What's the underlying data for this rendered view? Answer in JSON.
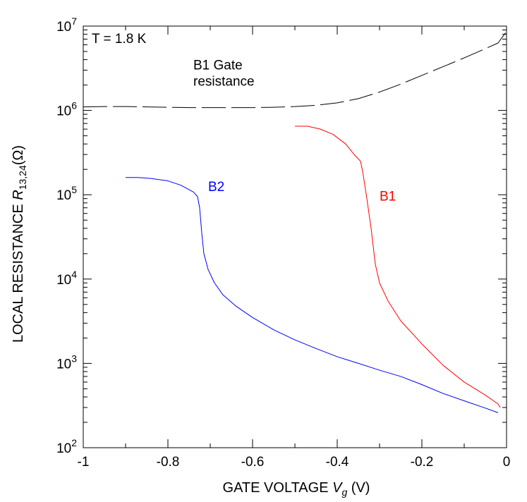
{
  "chart_data": {
    "type": "line",
    "title": "",
    "xlabel_parts": {
      "prefix": "GATE VOLTAGE ",
      "var": "V",
      "sub": "g",
      "suffix": " (V)"
    },
    "ylabel_parts": {
      "prefix": "LOCAL RESISTANCE ",
      "var": "R",
      "sub": "13,24",
      "suffix": "(Ω)"
    },
    "xlim": [
      -1,
      0
    ],
    "ylim": [
      100,
      10000000
    ],
    "yscale": "log",
    "grid": false,
    "x_ticks": [
      {
        "value": -1,
        "label": "-1"
      },
      {
        "value": -0.8,
        "label": "-0.8"
      },
      {
        "value": -0.6,
        "label": "-0.6"
      },
      {
        "value": -0.4,
        "label": "-0.4"
      },
      {
        "value": -0.2,
        "label": "-0.2"
      },
      {
        "value": 0,
        "label": "0"
      }
    ],
    "y_ticks": [
      {
        "value": 100,
        "base": "10",
        "exp": "2"
      },
      {
        "value": 1000,
        "base": "10",
        "exp": "3"
      },
      {
        "value": 10000,
        "base": "10",
        "exp": "4"
      },
      {
        "value": 100000,
        "base": "10",
        "exp": "5"
      },
      {
        "value": 1000000,
        "base": "10",
        "exp": "6"
      },
      {
        "value": 10000000,
        "base": "10",
        "exp": "7"
      }
    ],
    "annotations": [
      {
        "id": "temperature",
        "lines": [
          "T = 1.8 K"
        ],
        "x": -0.98,
        "y": 6300000,
        "color": "#000000"
      },
      {
        "id": "gate-resistance",
        "lines": [
          "B1 Gate",
          "resistance"
        ],
        "x": -0.74,
        "y": 3050000,
        "color": "#000000"
      },
      {
        "id": "b2",
        "lines": [
          "B2"
        ],
        "x": -0.705,
        "y": 110000,
        "color": "#0000ff"
      },
      {
        "id": "b1",
        "lines": [
          "B1"
        ],
        "x": -0.3,
        "y": 85000,
        "color": "#ff0000"
      }
    ],
    "series": [
      {
        "name": "B1 Gate resistance",
        "color": "#000000",
        "dash": "dashed",
        "points": [
          [
            -1,
            1100000
          ],
          [
            -0.95,
            1110000
          ],
          [
            -0.9,
            1110000
          ],
          [
            -0.85,
            1100000
          ],
          [
            -0.8,
            1090000
          ],
          [
            -0.75,
            1080000
          ],
          [
            -0.7,
            1080000
          ],
          [
            -0.65,
            1080000
          ],
          [
            -0.6,
            1080000
          ],
          [
            -0.55,
            1090000
          ],
          [
            -0.5,
            1110000
          ],
          [
            -0.45,
            1150000
          ],
          [
            -0.4,
            1230000
          ],
          [
            -0.35,
            1380000
          ],
          [
            -0.3,
            1650000
          ],
          [
            -0.25,
            2050000
          ],
          [
            -0.2,
            2600000
          ],
          [
            -0.15,
            3300000
          ],
          [
            -0.1,
            4200000
          ],
          [
            -0.05,
            5400000
          ],
          [
            -0.02,
            6300000
          ],
          [
            -0.01,
            7400000
          ],
          [
            0,
            8600000
          ]
        ]
      },
      {
        "name": "B2",
        "color": "#0000ff",
        "dash": "solid",
        "points": [
          [
            -0.9,
            160000
          ],
          [
            -0.87,
            160000
          ],
          [
            -0.84,
            156000
          ],
          [
            -0.8,
            146000
          ],
          [
            -0.77,
            130000
          ],
          [
            -0.74,
            108000
          ],
          [
            -0.73,
            95000
          ],
          [
            -0.725,
            70000
          ],
          [
            -0.72,
            35000
          ],
          [
            -0.715,
            20000
          ],
          [
            -0.705,
            13000
          ],
          [
            -0.69,
            9000
          ],
          [
            -0.67,
            6500
          ],
          [
            -0.64,
            4800
          ],
          [
            -0.6,
            3500
          ],
          [
            -0.55,
            2500
          ],
          [
            -0.5,
            1900
          ],
          [
            -0.45,
            1500
          ],
          [
            -0.4,
            1200
          ],
          [
            -0.35,
            1000
          ],
          [
            -0.3,
            830
          ],
          [
            -0.25,
            700
          ],
          [
            -0.2,
            560
          ],
          [
            -0.15,
            440
          ],
          [
            -0.1,
            360
          ],
          [
            -0.05,
            295
          ],
          [
            -0.02,
            260
          ]
        ]
      },
      {
        "name": "B1",
        "color": "#ff0000",
        "dash": "solid",
        "points": [
          [
            -0.5,
            650000
          ],
          [
            -0.47,
            650000
          ],
          [
            -0.44,
            600000
          ],
          [
            -0.41,
            520000
          ],
          [
            -0.38,
            400000
          ],
          [
            -0.36,
            300000
          ],
          [
            -0.345,
            250000
          ],
          [
            -0.34,
            190000
          ],
          [
            -0.33,
            90000
          ],
          [
            -0.32,
            40000
          ],
          [
            -0.31,
            15000
          ],
          [
            -0.3,
            9000
          ],
          [
            -0.28,
            5500
          ],
          [
            -0.25,
            3200
          ],
          [
            -0.2,
            1700
          ],
          [
            -0.15,
            950
          ],
          [
            -0.1,
            600
          ],
          [
            -0.05,
            420
          ],
          [
            -0.02,
            330
          ],
          [
            -0.015,
            300
          ]
        ]
      }
    ]
  }
}
